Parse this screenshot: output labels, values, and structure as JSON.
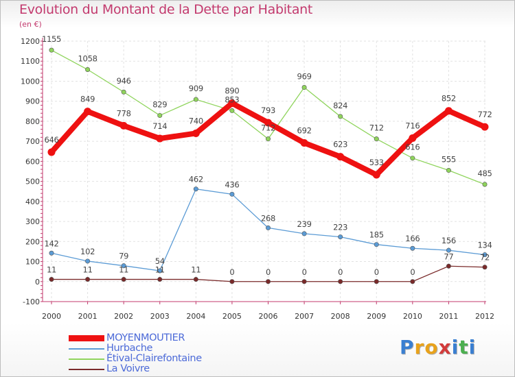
{
  "title": "Evolution du Montant de la Dette par Habitant",
  "unit_label": "(en €)",
  "logo": {
    "text": "Proxiti",
    "letters": [
      "P",
      "r",
      "o",
      "x",
      "i",
      "t",
      "i"
    ],
    "colors": [
      "#3a7fd1",
      "#e8a21c",
      "#e8a21c",
      "#d23b3b",
      "#3a7fd1",
      "#4caf50",
      "#3a7fd1"
    ]
  },
  "chart_data": {
    "type": "line",
    "categories": [
      "2000",
      "2001",
      "2002",
      "2003",
      "2004",
      "2005",
      "2006",
      "2007",
      "2008",
      "2009",
      "2010",
      "2011",
      "2012"
    ],
    "ylim": [
      -100,
      1200
    ],
    "yticks": [
      -100,
      0,
      100,
      200,
      300,
      400,
      500,
      600,
      700,
      800,
      900,
      1000,
      1100,
      1200
    ],
    "grid": true,
    "legend_position": "bottom-left",
    "series": [
      {
        "name": "MOYENMOUTIER",
        "color": "#ee1111",
        "width": 8,
        "values": [
          646,
          849,
          778,
          714,
          740,
          890,
          793,
          692,
          623,
          533,
          716,
          852,
          772
        ]
      },
      {
        "name": "Hurbache",
        "color": "#5b9bd5",
        "width": 1.3,
        "values": [
          142,
          102,
          79,
          54,
          462,
          436,
          268,
          239,
          223,
          185,
          166,
          156,
          134
        ]
      },
      {
        "name": "Étival-Clairefontaine",
        "color": "#8fd45c",
        "width": 1.3,
        "values": [
          1155,
          1058,
          946,
          829,
          909,
          853,
          712,
          969,
          824,
          712,
          616,
          555,
          485
        ]
      },
      {
        "name": "La Voivre",
        "color": "#7a2a2a",
        "width": 1.3,
        "values": [
          11,
          11,
          11,
          11,
          11,
          0,
          0,
          0,
          0,
          0,
          0,
          77,
          72
        ]
      }
    ]
  }
}
